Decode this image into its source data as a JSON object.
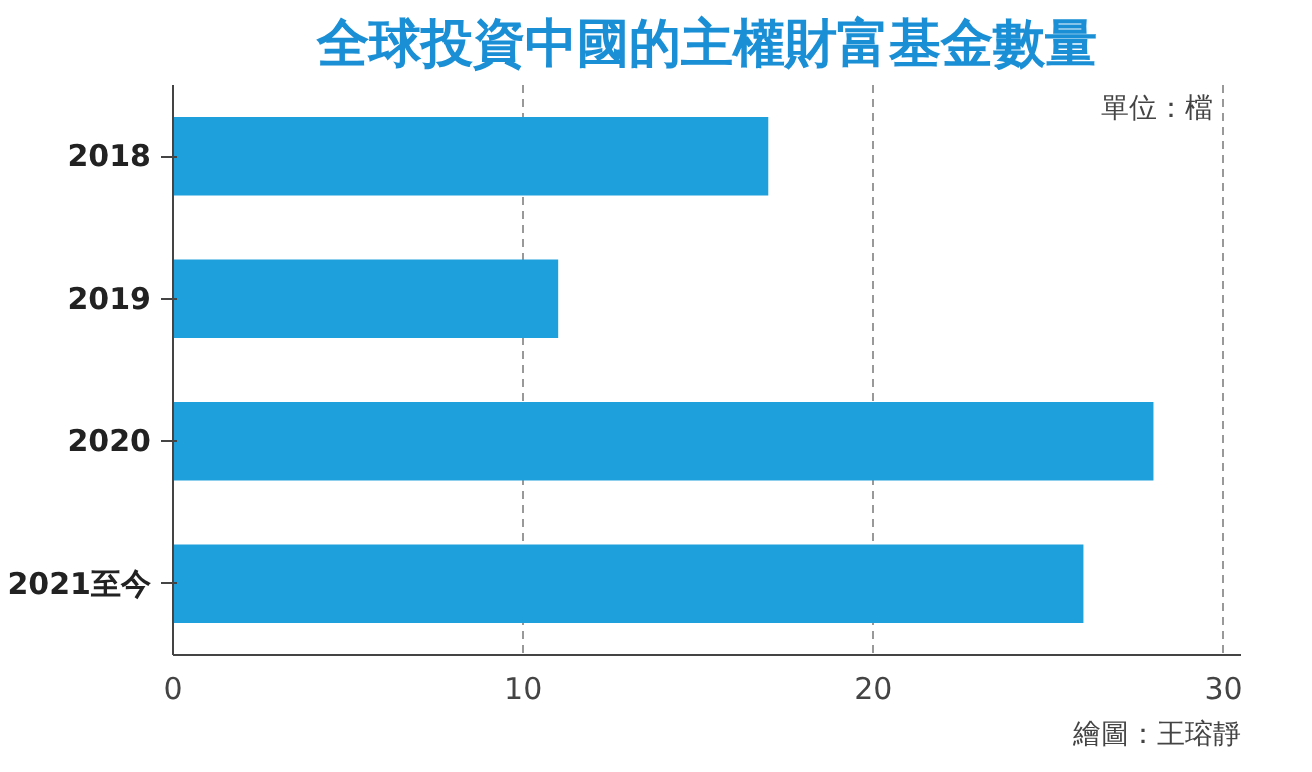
{
  "chart_data": {
    "type": "bar",
    "orientation": "horizontal",
    "title": "全球投資中國的主權財富基金數量",
    "categories": [
      "2018",
      "2019",
      "2020",
      "2021至今"
    ],
    "series": [
      {
        "color": "#1ea0dc",
        "values": [
          17,
          11,
          28,
          26
        ]
      }
    ],
    "xlim": [
      0,
      30.5
    ],
    "xticks": [
      0,
      10,
      20,
      30
    ],
    "grid": "x",
    "annotations": [
      "單位：檔",
      "繪圖：王瑢靜"
    ]
  }
}
